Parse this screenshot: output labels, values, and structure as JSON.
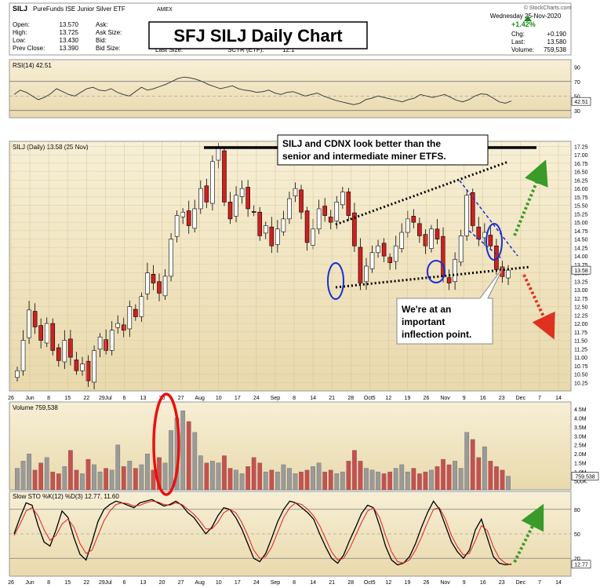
{
  "header": {
    "symbol": "SILJ",
    "description": "PureFunds ISE Junior Silver ETF",
    "exchange": "AMEX",
    "source": "© StockCharts.com",
    "date": "Wednesday  25-Nov-2020",
    "fields_left": [
      {
        "label": "Open:",
        "value": "13.570"
      },
      {
        "label": "High:",
        "value": "13.725"
      },
      {
        "label": "Low:",
        "value": "13.430"
      },
      {
        "label": "Prev Close:",
        "value": "13.390"
      }
    ],
    "fields_mid": [
      {
        "label": "Ask:",
        "value": ""
      },
      {
        "label": "Ask Size:",
        "value": ""
      },
      {
        "label": "Bid:",
        "value": ""
      },
      {
        "label": "Bid Size:",
        "value": ""
      }
    ],
    "last_size_label": "Last Size:",
    "sctr_label": "SCTR (ETF):",
    "sctr_value": "12.1",
    "change_pct": "+1.42%",
    "fields_right": [
      {
        "label": "Chg:",
        "value": "+0.190"
      },
      {
        "label": "Last:",
        "value": "13.580"
      },
      {
        "label": "Volume:",
        "value": "759,538"
      }
    ]
  },
  "title_box": "SFJ SILJ Daily Chart",
  "annotation_top": [
    "SILJ and CDNX look better than the",
    "senior and intermediate miner ETFS."
  ],
  "annotation_bottom": [
    "We're at an",
    "important",
    "inflection point."
  ],
  "colors": {
    "up": "#ffffff",
    "down": "#d02020",
    "bull_arrow": "#3a9a2a",
    "bear_arrow": "#e03020",
    "bg": "#efe3c0",
    "stoch_k": "#000000",
    "stoch_d": "#e02020",
    "rsi": "#404040"
  },
  "chart_data": [
    {
      "panel": "rsi",
      "type": "line",
      "label": "RSI(14) 42.51",
      "last_value": "42.51",
      "ylim": [
        20,
        100
      ],
      "yticks": [
        90,
        70,
        50,
        30
      ],
      "reference_lines": [
        70,
        30
      ],
      "values": [
        52,
        58,
        55,
        50,
        45,
        48,
        53,
        60,
        56,
        52,
        50,
        55,
        60,
        62,
        58,
        57,
        60,
        55,
        52,
        50,
        56,
        62,
        58,
        60,
        63,
        66,
        70,
        74,
        76,
        75,
        73,
        70,
        66,
        63,
        60,
        62,
        64,
        60,
        58,
        57,
        55,
        56,
        58,
        54,
        52,
        55,
        56,
        53,
        50,
        52,
        54,
        50,
        47,
        44,
        42,
        40,
        38,
        40,
        45,
        47,
        50,
        48,
        46,
        44,
        42,
        45,
        47,
        52,
        50,
        48,
        50,
        52,
        48,
        44,
        42,
        45,
        50,
        53,
        52,
        47,
        42,
        40,
        43
      ]
    },
    {
      "panel": "price",
      "type": "candlestick",
      "label": "SILJ (Daily) 13.58 (25 Nov)",
      "last_value": "13.58",
      "ylim": [
        10.0,
        17.4
      ],
      "yticks": [
        "17.25",
        "17.00",
        "16.75",
        "16.50",
        "16.25",
        "16.00",
        "15.75",
        "15.50",
        "15.25",
        "15.00",
        "14.75",
        "14.50",
        "14.25",
        "14.00",
        "13.75",
        "13.50",
        "13.25",
        "13.00",
        "12.75",
        "12.50",
        "12.25",
        "12.00",
        "11.75",
        "11.50",
        "11.25",
        "11.00",
        "10.75",
        "10.50",
        "10.25"
      ],
      "closes": [
        10.6,
        11.5,
        12.4,
        11.9,
        11.5,
        12.0,
        11.2,
        10.9,
        11.5,
        11.0,
        10.6,
        10.8,
        10.3,
        11.2,
        11.6,
        11.2,
        11.8,
        12.0,
        11.8,
        12.5,
        12.2,
        12.8,
        13.5,
        13.2,
        12.9,
        13.4,
        14.5,
        15.2,
        15.3,
        14.9,
        15.4,
        16.0,
        15.6,
        16.8,
        17.2,
        15.6,
        15.1,
        15.8,
        16.0,
        15.4,
        15.3,
        14.6,
        14.9,
        14.3,
        14.8,
        15.1,
        15.7,
        16.0,
        15.3,
        14.4,
        14.8,
        15.4,
        15.2,
        15.0,
        15.6,
        15.9,
        15.2,
        14.3,
        13.2,
        13.7,
        14.1,
        14.3,
        14.0,
        13.8,
        14.3,
        14.7,
        15.1,
        15.0,
        14.6,
        14.3,
        14.8,
        14.5,
        13.4,
        13.2,
        13.9,
        14.6,
        15.8,
        14.9,
        14.5,
        14.7,
        14.3,
        13.6,
        13.39,
        13.58
      ],
      "x_labels": [
        "26",
        "Jun",
        "8",
        "15",
        "22",
        "29Jul",
        "6",
        "13",
        "20",
        "27",
        "Aug",
        "10",
        "17",
        "24",
        "Sep",
        "8",
        "14",
        "21",
        "28",
        "Oct5",
        "12",
        "19",
        "26",
        "Nov",
        "9",
        "16",
        "23",
        "Dec",
        "7",
        "14"
      ]
    },
    {
      "panel": "volume",
      "type": "bar",
      "label": "Volume 759,538",
      "last_value": "759,538",
      "ylim": [
        0,
        4.8
      ],
      "yticks": [
        "4.5M",
        "4.0M",
        "3.5M",
        "3.0M",
        "2.5M",
        "2.0M",
        "1.5M",
        "1.0M",
        "500K"
      ],
      "values_millions": [
        1.2,
        1.6,
        2.0,
        1.1,
        1.5,
        1.8,
        1.0,
        0.9,
        1.3,
        2.2,
        1.1,
        0.9,
        1.7,
        1.4,
        1.0,
        1.2,
        1.1,
        2.5,
        1.3,
        1.6,
        1.2,
        1.4,
        2.0,
        1.1,
        1.8,
        1.5,
        3.3,
        4.0,
        4.4,
        3.8,
        3.2,
        1.9,
        1.5,
        1.6,
        1.5,
        1.9,
        1.2,
        1.1,
        0.9,
        1.3,
        1.8,
        1.5,
        1.0,
        1.1,
        1.0,
        1.4,
        1.2,
        0.9,
        1.0,
        1.1,
        1.3,
        1.5,
        1.0,
        1.1,
        0.9,
        1.0,
        1.6,
        2.2,
        1.6,
        1.2,
        1.1,
        1.0,
        0.9,
        1.0,
        1.2,
        1.4,
        1.0,
        1.2,
        0.9,
        1.0,
        1.1,
        1.3,
        1.7,
        1.4,
        1.6,
        1.2,
        3.2,
        2.8,
        1.8,
        2.4,
        1.6,
        1.3,
        1.1,
        0.76
      ]
    },
    {
      "panel": "stochastic",
      "type": "line",
      "label": "Slow STO %K(12) %D(3) 12.77, 11.60",
      "last_value": "12.77",
      "ylim": [
        0,
        100
      ],
      "yticks": [
        80,
        50,
        20
      ],
      "reference_lines": [
        80,
        20
      ],
      "series": [
        {
          "name": "%K",
          "values": [
            50,
            70,
            88,
            85,
            60,
            40,
            35,
            55,
            78,
            70,
            45,
            25,
            18,
            40,
            65,
            80,
            86,
            90,
            88,
            85,
            82,
            88,
            90,
            92,
            88,
            84,
            86,
            90,
            85,
            76,
            70,
            60,
            50,
            58,
            72,
            82,
            80,
            70,
            56,
            38,
            20,
            16,
            26,
            45,
            65,
            80,
            90,
            88,
            82,
            76,
            68,
            50,
            34,
            20,
            14,
            24,
            42,
            58,
            75,
            85,
            82,
            60,
            35,
            18,
            12,
            14,
            22,
            38,
            58,
            76,
            90,
            80,
            60,
            40,
            28,
            20,
            30,
            55,
            68,
            45,
            22,
            14,
            12,
            13
          ]
        },
        {
          "name": "%D",
          "values": [
            48,
            62,
            78,
            82,
            72,
            55,
            42,
            48,
            62,
            68,
            58,
            38,
            26,
            30,
            48,
            66,
            78,
            86,
            88,
            87,
            84,
            85,
            88,
            90,
            89,
            86,
            85,
            88,
            86,
            80,
            74,
            66,
            56,
            56,
            64,
            76,
            80,
            76,
            64,
            48,
            30,
            20,
            22,
            34,
            52,
            70,
            82,
            88,
            86,
            80,
            72,
            60,
            44,
            28,
            18,
            20,
            32,
            48,
            64,
            78,
            82,
            70,
            48,
            28,
            16,
            14,
            18,
            30,
            46,
            64,
            80,
            82,
            68,
            48,
            34,
            24,
            26,
            42,
            60,
            54,
            34,
            20,
            14,
            12
          ]
        }
      ]
    }
  ]
}
